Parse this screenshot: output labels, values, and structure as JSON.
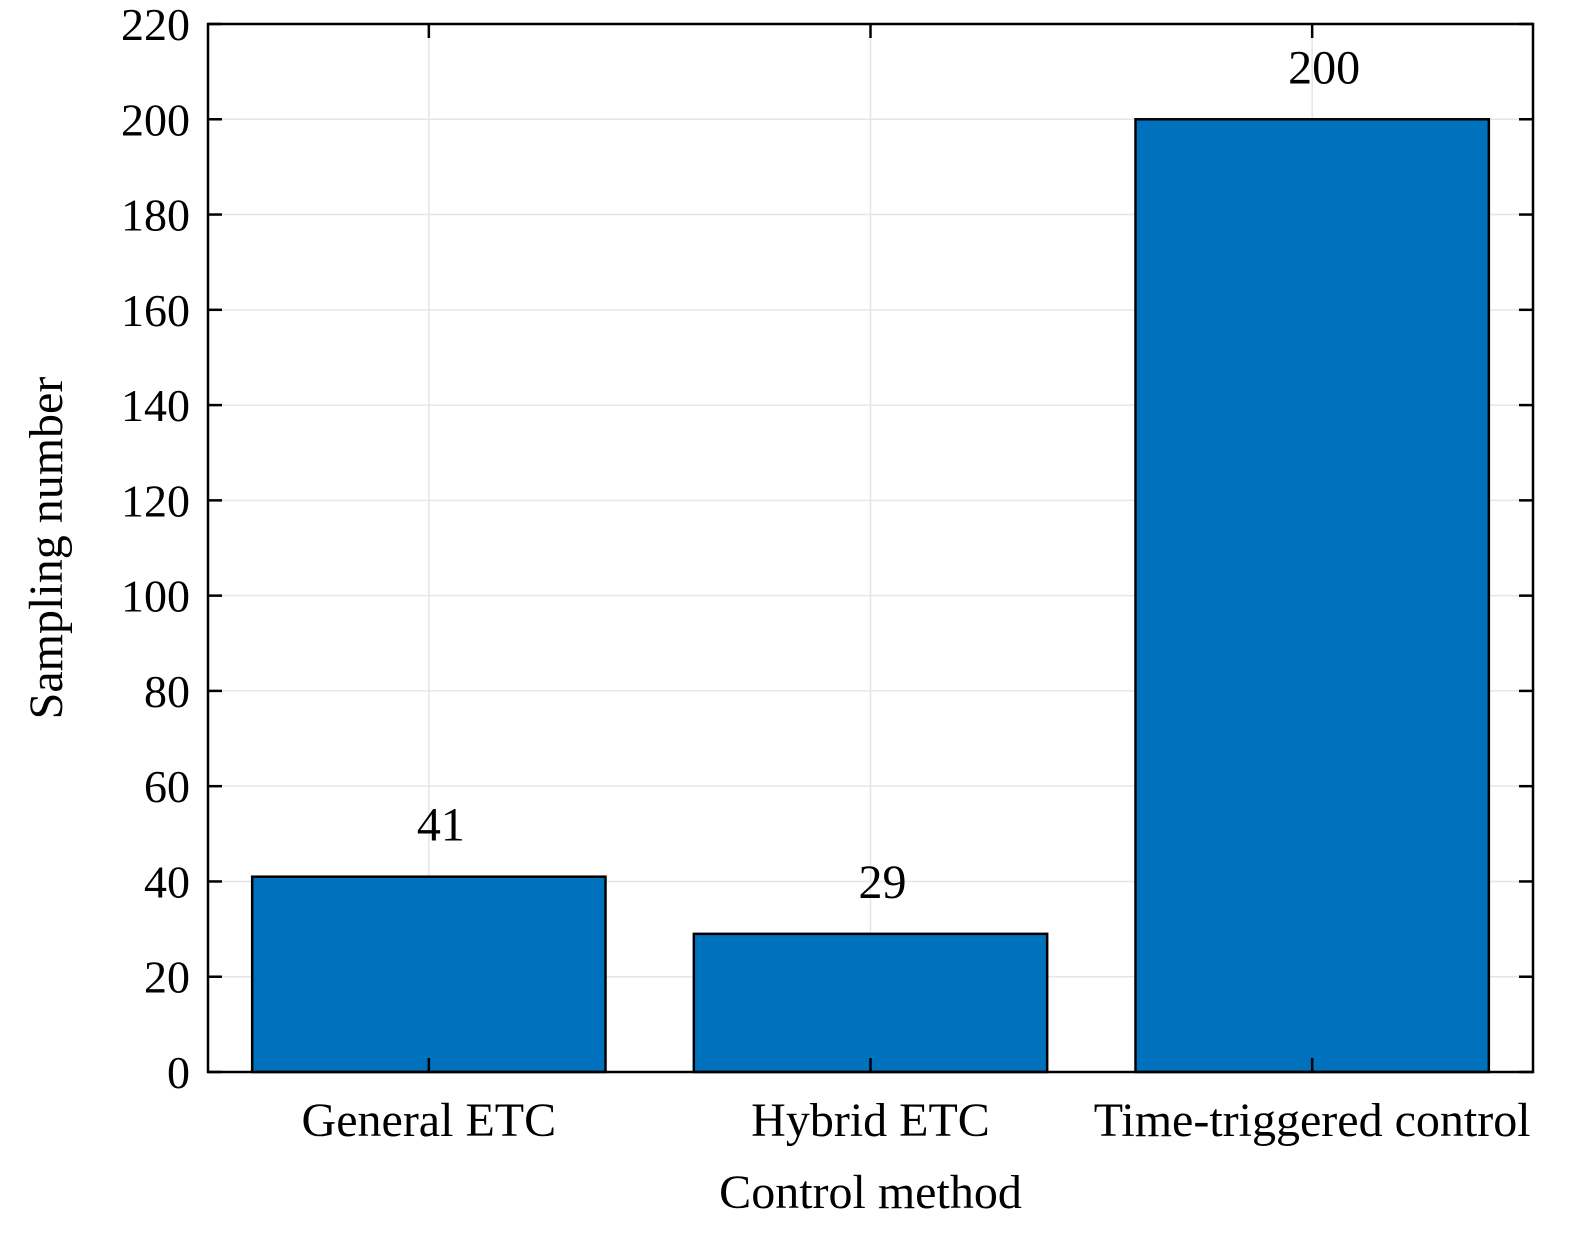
{
  "chart_data": {
    "type": "bar",
    "categories": [
      "General ETC",
      "Hybrid ETC",
      "Time-triggered control"
    ],
    "values": [
      41,
      29,
      200
    ],
    "data_labels": [
      "41",
      "29",
      "200"
    ],
    "title": "",
    "xlabel": "Control method",
    "ylabel": "Sampling number",
    "ylim": [
      0,
      220
    ],
    "yticks": [
      0,
      20,
      40,
      60,
      80,
      100,
      120,
      140,
      160,
      180,
      200,
      220
    ],
    "ytick_labels": [
      "0",
      "20",
      "40",
      "60",
      "80",
      "100",
      "120",
      "140",
      "160",
      "180",
      "200",
      "220"
    ],
    "grid": true,
    "bar_color": "#0072BD",
    "edge_color": "#000000"
  }
}
